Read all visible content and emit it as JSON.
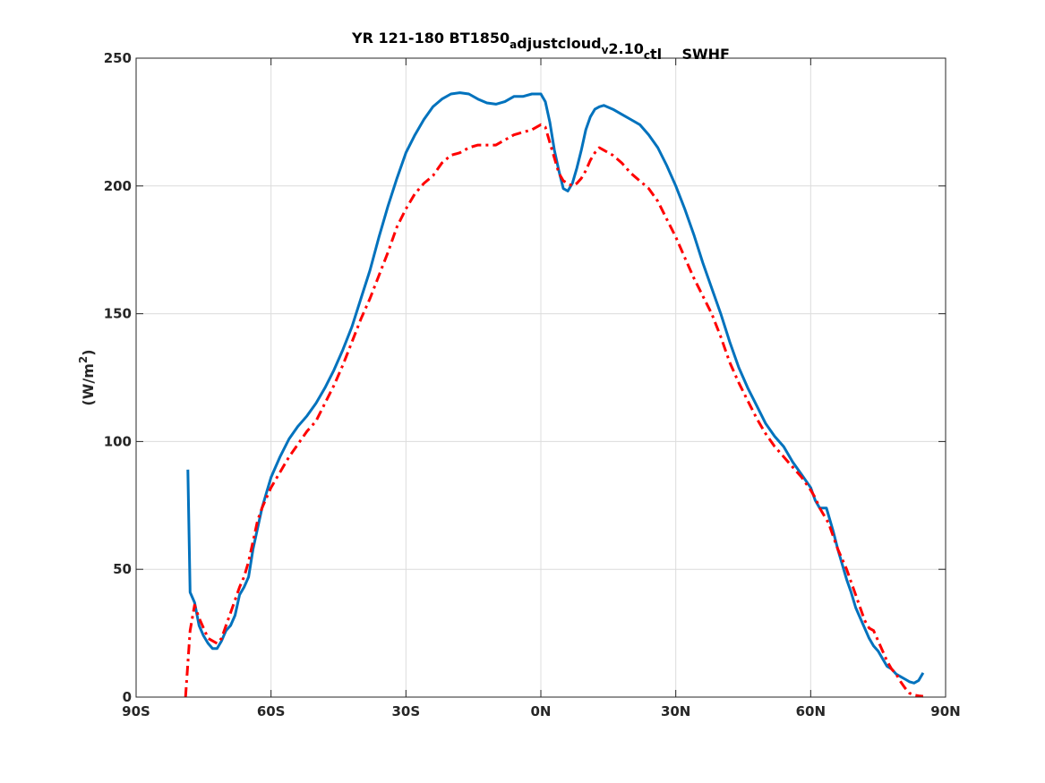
{
  "chart_data": {
    "type": "line",
    "title_parts": [
      {
        "text": "YR 121-180 BT1850",
        "sub": false
      },
      {
        "text": "a",
        "sub": true
      },
      {
        "text": "djustcloud",
        "sub": false
      },
      {
        "text": "v",
        "sub": true
      },
      {
        "text": "2.10",
        "sub": false
      },
      {
        "text": "c",
        "sub": true
      },
      {
        "text": "tl    SWHF",
        "sub": false
      }
    ],
    "ylabel": {
      "prefix": "(W/m",
      "sup": "2",
      "suffix": ")"
    },
    "xlabel": "",
    "xlim": [
      -90,
      90
    ],
    "ylim": [
      0,
      250
    ],
    "xticks": [
      {
        "value": -90,
        "label": "90S"
      },
      {
        "value": -60,
        "label": "60S"
      },
      {
        "value": -30,
        "label": "30S"
      },
      {
        "value": 0,
        "label": "0N"
      },
      {
        "value": 30,
        "label": "30N"
      },
      {
        "value": 60,
        "label": "60N"
      },
      {
        "value": 90,
        "label": "90N"
      }
    ],
    "yticks": [
      {
        "value": 0,
        "label": "0"
      },
      {
        "value": 50,
        "label": "50"
      },
      {
        "value": 100,
        "label": "100"
      },
      {
        "value": 150,
        "label": "150"
      },
      {
        "value": 200,
        "label": "200"
      },
      {
        "value": 250,
        "label": "250"
      }
    ],
    "grid": true,
    "series": [
      {
        "color": "#0072BD",
        "style": "solid",
        "points": [
          [
            -78.5,
            89
          ],
          [
            -78.0,
            41
          ],
          [
            -77.0,
            37
          ],
          [
            -76.0,
            28
          ],
          [
            -75.0,
            24
          ],
          [
            -74.0,
            21
          ],
          [
            -73.0,
            19
          ],
          [
            -72.0,
            19
          ],
          [
            -71.0,
            22
          ],
          [
            -70.0,
            26
          ],
          [
            -69.0,
            28
          ],
          [
            -68.0,
            32
          ],
          [
            -67.0,
            40
          ],
          [
            -66.0,
            43
          ],
          [
            -65.0,
            47
          ],
          [
            -64.0,
            58
          ],
          [
            -63.0,
            66
          ],
          [
            -62.0,
            74
          ],
          [
            -61.0,
            80
          ],
          [
            -60.0,
            86
          ],
          [
            -58.0,
            94
          ],
          [
            -56.0,
            101
          ],
          [
            -54.0,
            106
          ],
          [
            -52.0,
            110
          ],
          [
            -50.0,
            115
          ],
          [
            -48.0,
            121
          ],
          [
            -46.0,
            128
          ],
          [
            -44.0,
            136
          ],
          [
            -42.0,
            145
          ],
          [
            -40.0,
            156
          ],
          [
            -38.0,
            167
          ],
          [
            -36.0,
            180
          ],
          [
            -34.0,
            192
          ],
          [
            -32.0,
            203
          ],
          [
            -30.0,
            213
          ],
          [
            -28.0,
            220
          ],
          [
            -26.0,
            226
          ],
          [
            -24.0,
            231
          ],
          [
            -22.0,
            234
          ],
          [
            -20.0,
            236
          ],
          [
            -18.0,
            236.5
          ],
          [
            -16.0,
            236
          ],
          [
            -14.0,
            234
          ],
          [
            -12.0,
            232.5
          ],
          [
            -10.0,
            232
          ],
          [
            -8.0,
            233
          ],
          [
            -6.0,
            235
          ],
          [
            -4.0,
            235
          ],
          [
            -2.0,
            236
          ],
          [
            0.0,
            236
          ],
          [
            1.0,
            233
          ],
          [
            2.0,
            225
          ],
          [
            3.0,
            214
          ],
          [
            4.0,
            206
          ],
          [
            5.0,
            199
          ],
          [
            6.0,
            198
          ],
          [
            7.0,
            201
          ],
          [
            8.0,
            207
          ],
          [
            9.0,
            214
          ],
          [
            10.0,
            222
          ],
          [
            11.0,
            227
          ],
          [
            12.0,
            230
          ],
          [
            13.0,
            231
          ],
          [
            14.0,
            231.5
          ],
          [
            16.0,
            230
          ],
          [
            18.0,
            228
          ],
          [
            20.0,
            226
          ],
          [
            22.0,
            224
          ],
          [
            24.0,
            220
          ],
          [
            26.0,
            215
          ],
          [
            28.0,
            208
          ],
          [
            30.0,
            200
          ],
          [
            32.0,
            191
          ],
          [
            34.0,
            181
          ],
          [
            36.0,
            170
          ],
          [
            38.0,
            160
          ],
          [
            40.0,
            150
          ],
          [
            42.0,
            139
          ],
          [
            44.0,
            129
          ],
          [
            46.0,
            121
          ],
          [
            48.0,
            114
          ],
          [
            50.0,
            107
          ],
          [
            52.0,
            102
          ],
          [
            54.0,
            98
          ],
          [
            56.0,
            92
          ],
          [
            58.0,
            87
          ],
          [
            60.0,
            82
          ],
          [
            61.0,
            77
          ],
          [
            62.0,
            74
          ],
          [
            63.5,
            74
          ],
          [
            65.0,
            65
          ],
          [
            66.0,
            58
          ],
          [
            67.0,
            52
          ],
          [
            68.0,
            46
          ],
          [
            69.0,
            41
          ],
          [
            70.0,
            35
          ],
          [
            71.0,
            31
          ],
          [
            72.0,
            27
          ],
          [
            73.0,
            23
          ],
          [
            74.0,
            20
          ],
          [
            75.0,
            18
          ],
          [
            76.0,
            15
          ],
          [
            77.0,
            12
          ],
          [
            78.0,
            11
          ],
          [
            79.0,
            9
          ],
          [
            80.0,
            8
          ],
          [
            81.0,
            7
          ],
          [
            82.0,
            6
          ],
          [
            83.0,
            5.5
          ],
          [
            84.0,
            6.5
          ],
          [
            85.0,
            9.5
          ]
        ]
      },
      {
        "color": "#FF0000",
        "style": "dashdot",
        "points": [
          [
            -79.0,
            0
          ],
          [
            -78.0,
            26
          ],
          [
            -77.0,
            36
          ],
          [
            -76.0,
            31
          ],
          [
            -75.0,
            27
          ],
          [
            -74.0,
            23
          ],
          [
            -73.0,
            22
          ],
          [
            -72.0,
            21
          ],
          [
            -71.0,
            23
          ],
          [
            -70.0,
            28
          ],
          [
            -69.0,
            33
          ],
          [
            -68.0,
            38
          ],
          [
            -67.0,
            43
          ],
          [
            -66.0,
            47
          ],
          [
            -65.0,
            53
          ],
          [
            -64.0,
            61
          ],
          [
            -63.0,
            69
          ],
          [
            -62.0,
            74
          ],
          [
            -61.0,
            78
          ],
          [
            -60.0,
            82
          ],
          [
            -58.0,
            88
          ],
          [
            -56.0,
            94
          ],
          [
            -54.0,
            99
          ],
          [
            -52.0,
            104
          ],
          [
            -50.0,
            108
          ],
          [
            -48.0,
            115
          ],
          [
            -46.0,
            122
          ],
          [
            -44.0,
            130
          ],
          [
            -42.0,
            139
          ],
          [
            -40.0,
            148
          ],
          [
            -38.0,
            156
          ],
          [
            -36.0,
            165
          ],
          [
            -34.0,
            174
          ],
          [
            -32.0,
            184
          ],
          [
            -30.0,
            191
          ],
          [
            -28.0,
            197
          ],
          [
            -26.0,
            201
          ],
          [
            -24.0,
            204
          ],
          [
            -22.0,
            209
          ],
          [
            -20.0,
            212
          ],
          [
            -18.0,
            213
          ],
          [
            -16.0,
            215
          ],
          [
            -14.0,
            216
          ],
          [
            -12.0,
            216
          ],
          [
            -10.0,
            216
          ],
          [
            -8.0,
            218
          ],
          [
            -6.0,
            220
          ],
          [
            -4.0,
            221
          ],
          [
            -2.0,
            222
          ],
          [
            0.0,
            224
          ],
          [
            1.0,
            223
          ],
          [
            2.0,
            217
          ],
          [
            3.0,
            211
          ],
          [
            4.0,
            205
          ],
          [
            5.0,
            202
          ],
          [
            6.0,
            201
          ],
          [
            7.0,
            200
          ],
          [
            8.0,
            201
          ],
          [
            9.0,
            203
          ],
          [
            10.0,
            206
          ],
          [
            11.0,
            210
          ],
          [
            12.0,
            213
          ],
          [
            13.0,
            215
          ],
          [
            14.0,
            214
          ],
          [
            16.0,
            212
          ],
          [
            18.0,
            209
          ],
          [
            20.0,
            205
          ],
          [
            22.0,
            202
          ],
          [
            24.0,
            199
          ],
          [
            26.0,
            194
          ],
          [
            28.0,
            187
          ],
          [
            30.0,
            180
          ],
          [
            32.0,
            172
          ],
          [
            34.0,
            164
          ],
          [
            36.0,
            157
          ],
          [
            38.0,
            150
          ],
          [
            40.0,
            141
          ],
          [
            42.0,
            131
          ],
          [
            44.0,
            123
          ],
          [
            46.0,
            116
          ],
          [
            48.0,
            109
          ],
          [
            50.0,
            103
          ],
          [
            52.0,
            98
          ],
          [
            54.0,
            94
          ],
          [
            56.0,
            90
          ],
          [
            58.0,
            86
          ],
          [
            60.0,
            81
          ],
          [
            61.0,
            78
          ],
          [
            62.0,
            74
          ],
          [
            63.0,
            71
          ],
          [
            64.0,
            68
          ],
          [
            65.0,
            63
          ],
          [
            66.0,
            58
          ],
          [
            67.0,
            54
          ],
          [
            68.0,
            50
          ],
          [
            69.0,
            45
          ],
          [
            70.0,
            40
          ],
          [
            71.0,
            35
          ],
          [
            72.0,
            30
          ],
          [
            73.0,
            27
          ],
          [
            74.0,
            26
          ],
          [
            75.0,
            22
          ],
          [
            76.0,
            18
          ],
          [
            77.0,
            14
          ],
          [
            78.0,
            11
          ],
          [
            79.0,
            9
          ],
          [
            80.0,
            6
          ],
          [
            81.0,
            3.5
          ],
          [
            82.0,
            1.5
          ],
          [
            83.0,
            0.8
          ],
          [
            84.0,
            0.5
          ],
          [
            85.0,
            0.3
          ]
        ]
      }
    ]
  }
}
